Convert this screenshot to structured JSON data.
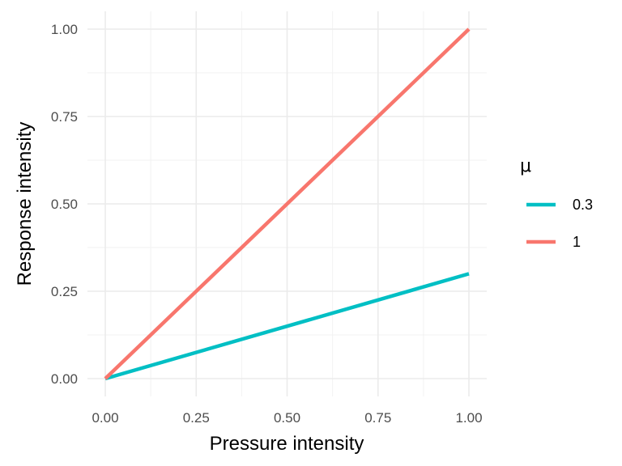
{
  "chart_data": {
    "type": "line",
    "title": "",
    "xlabel": "Pressure intensity",
    "ylabel": "Response intensity",
    "xlim": [
      0,
      1
    ],
    "ylim": [
      0,
      1
    ],
    "x_ticks": [
      "0.00",
      "0.25",
      "0.50",
      "0.75",
      "1.00"
    ],
    "y_ticks": [
      "0.00",
      "0.25",
      "0.50",
      "0.75",
      "1.00"
    ],
    "grid": true,
    "legend_position": "right",
    "legend_title": "μ",
    "series": [
      {
        "name": "0.3",
        "color": "#00BFC4",
        "x": [
          0,
          1
        ],
        "y": [
          0,
          0.3
        ]
      },
      {
        "name": "1",
        "color": "#F8766D",
        "x": [
          0,
          1
        ],
        "y": [
          0,
          1
        ]
      }
    ]
  }
}
